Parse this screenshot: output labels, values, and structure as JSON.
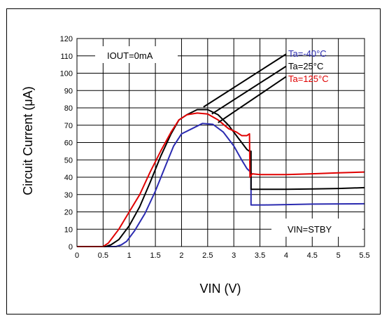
{
  "chart_data": {
    "type": "line",
    "title": "",
    "xlabel": "VIN (V)",
    "ylabel": "Circuit Current (μA)",
    "xlim": [
      0,
      5.5
    ],
    "ylim": [
      0,
      120
    ],
    "x_ticks": [
      "0",
      "0.5",
      "1",
      "1.5",
      "2",
      "2.5",
      "3",
      "3.5",
      "4",
      "4.5",
      "5",
      "5.5"
    ],
    "y_ticks": [
      "0",
      "10",
      "20",
      "30",
      "40",
      "50",
      "60",
      "70",
      "80",
      "90",
      "100",
      "110",
      "120"
    ],
    "grid": true,
    "legend_position": "top-right",
    "annotations": [
      "IOUT=0mA",
      "VIN=STBY"
    ],
    "series": [
      {
        "name": "Ta=-40°C",
        "color": "#2b2bb0",
        "points": [
          [
            0,
            0
          ],
          [
            0.6,
            0
          ],
          [
            0.75,
            0
          ],
          [
            0.85,
            1
          ],
          [
            0.95,
            3
          ],
          [
            1.1,
            9
          ],
          [
            1.3,
            19
          ],
          [
            1.5,
            32
          ],
          [
            1.7,
            47
          ],
          [
            1.85,
            58
          ],
          [
            2.0,
            65
          ],
          [
            2.2,
            68
          ],
          [
            2.4,
            71
          ],
          [
            2.6,
            70.5
          ],
          [
            2.8,
            66
          ],
          [
            3.0,
            58
          ],
          [
            3.15,
            50
          ],
          [
            3.25,
            45
          ],
          [
            3.32,
            43
          ],
          [
            3.33,
            43
          ],
          [
            3.33,
            24
          ],
          [
            3.4,
            24
          ],
          [
            3.6,
            24
          ],
          [
            4.0,
            24.2
          ],
          [
            4.5,
            24.5
          ],
          [
            5.0,
            24.6
          ],
          [
            5.5,
            24.7
          ]
        ]
      },
      {
        "name": "Ta=25°C",
        "color": "#000000",
        "points": [
          [
            0,
            0
          ],
          [
            0.55,
            0
          ],
          [
            0.65,
            1
          ],
          [
            0.8,
            4
          ],
          [
            1.0,
            12
          ],
          [
            1.2,
            23
          ],
          [
            1.4,
            37
          ],
          [
            1.6,
            52
          ],
          [
            1.8,
            65
          ],
          [
            1.95,
            73
          ],
          [
            2.1,
            76
          ],
          [
            2.3,
            79
          ],
          [
            2.5,
            79
          ],
          [
            2.7,
            76
          ],
          [
            2.9,
            70
          ],
          [
            3.05,
            64
          ],
          [
            3.15,
            60
          ],
          [
            3.25,
            56
          ],
          [
            3.3,
            55
          ],
          [
            3.33,
            55
          ],
          [
            3.33,
            33
          ],
          [
            3.4,
            33
          ],
          [
            3.6,
            33
          ],
          [
            4.0,
            33
          ],
          [
            4.5,
            33.2
          ],
          [
            5.0,
            33.5
          ],
          [
            5.5,
            34
          ]
        ]
      },
      {
        "name": "Ta=125°C",
        "color": "#e00000",
        "points": [
          [
            0,
            0
          ],
          [
            0.5,
            0
          ],
          [
            0.6,
            2
          ],
          [
            0.8,
            10
          ],
          [
            1.0,
            20
          ],
          [
            1.2,
            30
          ],
          [
            1.4,
            43
          ],
          [
            1.6,
            55
          ],
          [
            1.8,
            66
          ],
          [
            1.95,
            73
          ],
          [
            2.1,
            76
          ],
          [
            2.3,
            77
          ],
          [
            2.5,
            76.5
          ],
          [
            2.7,
            73
          ],
          [
            2.9,
            68
          ],
          [
            3.05,
            66
          ],
          [
            3.15,
            64
          ],
          [
            3.25,
            64
          ],
          [
            3.3,
            65
          ],
          [
            3.31,
            40
          ],
          [
            3.35,
            42
          ],
          [
            3.5,
            41.5
          ],
          [
            4.0,
            41.5
          ],
          [
            4.5,
            42
          ],
          [
            5.0,
            42.5
          ],
          [
            5.5,
            43
          ]
        ]
      }
    ]
  }
}
